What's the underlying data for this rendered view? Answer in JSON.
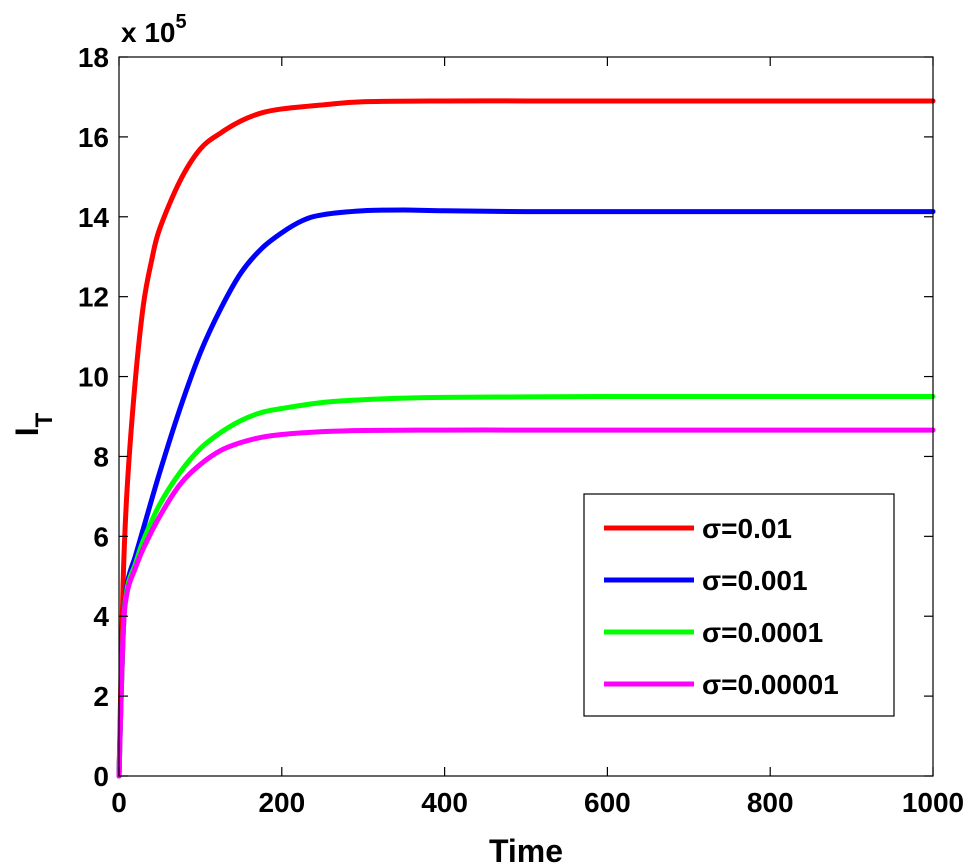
{
  "chart_data": {
    "type": "line",
    "xlabel": "Time",
    "ylabel_main": "I",
    "ylabel_sub": "T",
    "y_exponent_prefix": "x 10",
    "y_exponent_power": "5",
    "xlim": [
      0,
      1000
    ],
    "ylim": [
      0,
      18
    ],
    "xticks": [
      0,
      200,
      400,
      600,
      800,
      1000
    ],
    "yticks": [
      0,
      2,
      4,
      6,
      8,
      10,
      12,
      14,
      16,
      18
    ],
    "xtick_labels": [
      "0",
      "200",
      "400",
      "600",
      "800",
      "1000"
    ],
    "ytick_labels": [
      "0",
      "2",
      "4",
      "6",
      "8",
      "10",
      "12",
      "14",
      "16",
      "18"
    ],
    "grid": false,
    "legend_position": "bottom-right",
    "series": [
      {
        "name": "σ=0.01",
        "color": "#ff0000",
        "x": [
          0,
          5,
          10,
          20,
          30,
          40,
          50,
          75,
          100,
          125,
          150,
          175,
          200,
          250,
          300,
          400,
          500,
          600,
          800,
          1000
        ],
        "y": [
          0,
          4.8,
          7.2,
          9.9,
          11.8,
          12.9,
          13.7,
          14.9,
          15.7,
          16.1,
          16.4,
          16.6,
          16.7,
          16.8,
          16.88,
          16.9,
          16.9,
          16.9,
          16.9,
          16.9
        ]
      },
      {
        "name": "σ=0.001",
        "color": "#0000ff",
        "x": [
          0,
          5,
          10,
          20,
          30,
          50,
          75,
          100,
          125,
          150,
          175,
          200,
          225,
          250,
          300,
          350,
          400,
          500,
          600,
          800,
          1000
        ],
        "y": [
          0,
          3.5,
          4.8,
          5.5,
          6.2,
          7.6,
          9.2,
          10.6,
          11.7,
          12.6,
          13.2,
          13.6,
          13.9,
          14.05,
          14.15,
          14.17,
          14.15,
          14.13,
          14.13,
          14.13,
          14.13
        ]
      },
      {
        "name": "σ=0.0001",
        "color": "#00ff00",
        "x": [
          0,
          5,
          10,
          20,
          30,
          50,
          75,
          100,
          125,
          150,
          175,
          200,
          250,
          300,
          350,
          400,
          500,
          600,
          800,
          1000
        ],
        "y": [
          0,
          3.5,
          4.7,
          5.3,
          5.9,
          6.8,
          7.6,
          8.2,
          8.6,
          8.9,
          9.1,
          9.2,
          9.35,
          9.42,
          9.46,
          9.48,
          9.49,
          9.5,
          9.5,
          9.5
        ]
      },
      {
        "name": "σ=0.00001",
        "color": "#ff00ff",
        "x": [
          0,
          5,
          10,
          20,
          30,
          50,
          75,
          100,
          125,
          150,
          175,
          200,
          250,
          300,
          400,
          500,
          600,
          800,
          1000
        ],
        "y": [
          0,
          3.5,
          4.6,
          5.2,
          5.7,
          6.5,
          7.3,
          7.8,
          8.15,
          8.35,
          8.48,
          8.55,
          8.62,
          8.65,
          8.66,
          8.66,
          8.66,
          8.66,
          8.66
        ]
      }
    ]
  }
}
